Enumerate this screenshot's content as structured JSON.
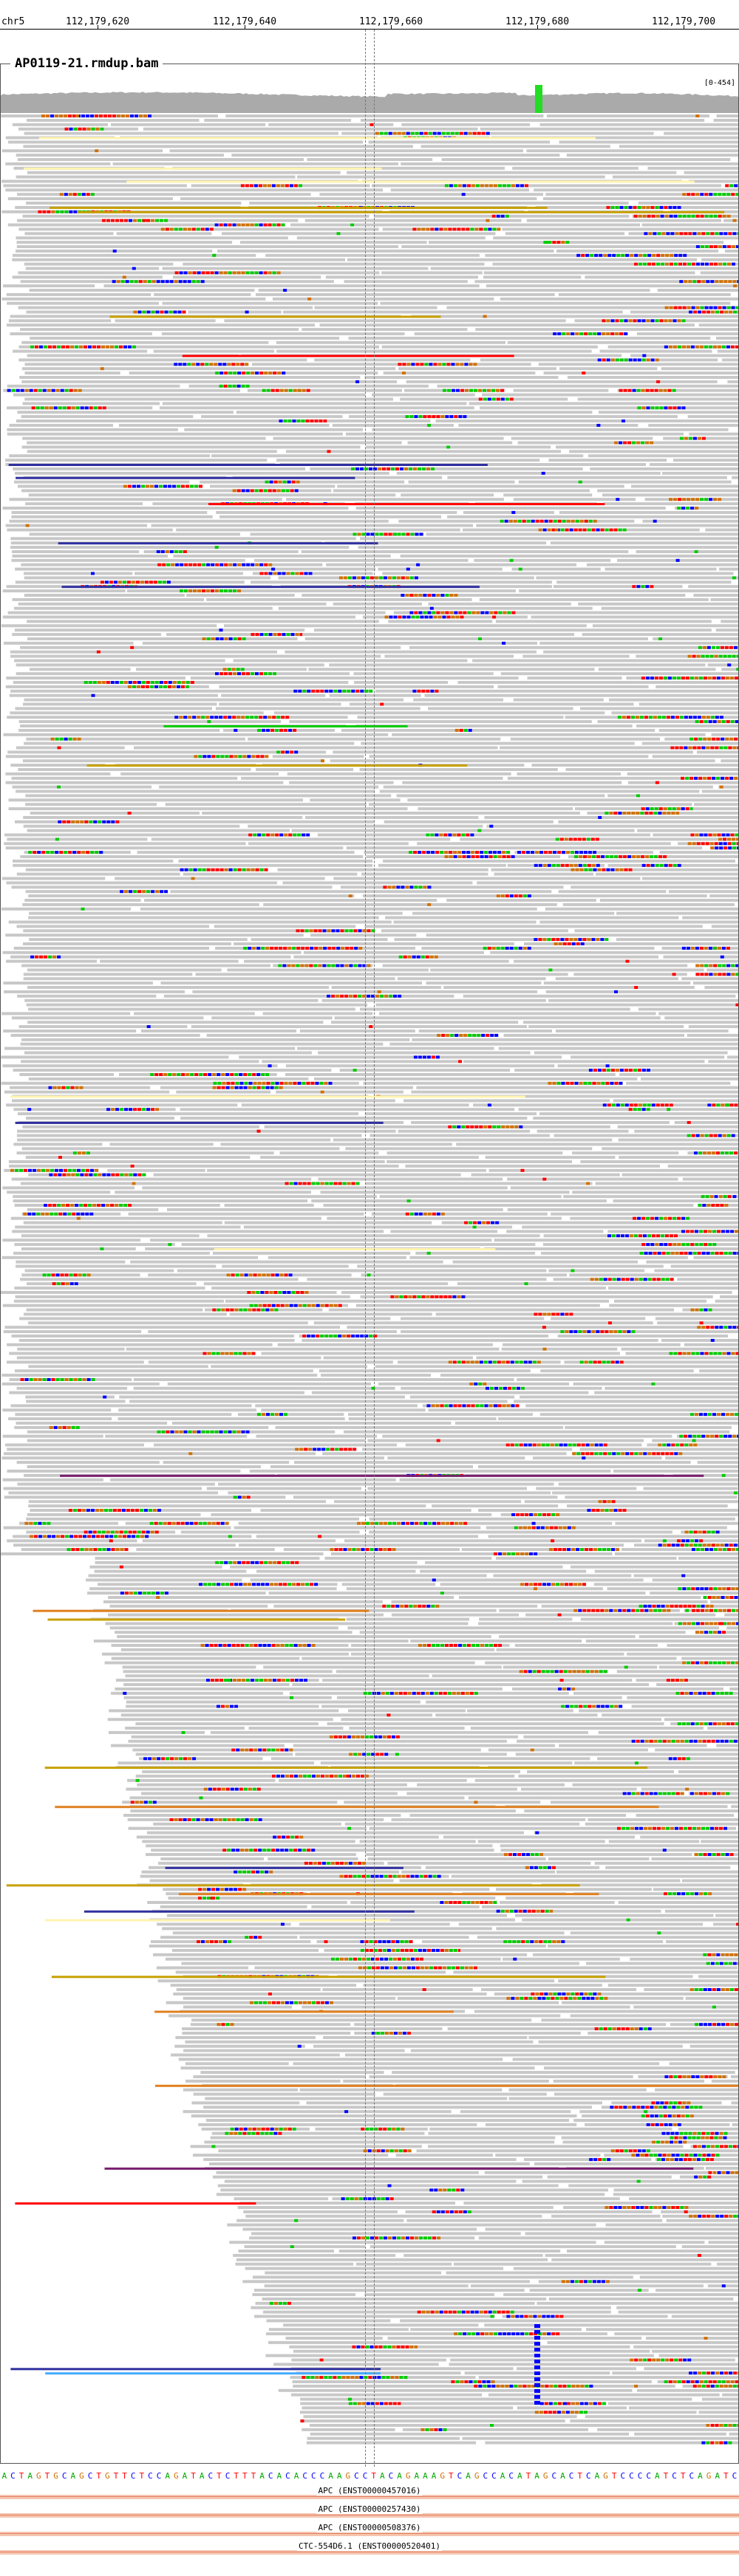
{
  "ruler": {
    "chromosome": "chr5",
    "ticks": [
      "112,179,620",
      "112,179,640",
      "112,179,660",
      "112,179,680",
      "112,179,700"
    ]
  },
  "track": {
    "title": "AP0119-21.rmdup.bam",
    "coverage_range": "[0-454]"
  },
  "colors": {
    "read_default": "#c8c8c8",
    "base_A": "#00cc00",
    "base_C": "#0000ff",
    "base_G": "#d17105",
    "base_T": "#ff0000",
    "coverage": "#aaaaaa",
    "coverage_snp": "#22dd22",
    "gene_body": "#f6c4b0",
    "soft_yellow": "#fff3b0",
    "insert_purple": "#7a1f6f",
    "insert_blue": "#3030a0",
    "insert_cyan": "#44aaff",
    "insert_orange": "#e08020",
    "insert_olive": "#c8a000"
  },
  "sequence": "ACTAGTGCAGCTGTTCTCCAGATACTCTTTACACACCCAAGCCTACAGAAAGTCAGCCACATAGCACTCAGTCCCCATCTCAGATC",
  "genes": [
    {
      "label": "APC (ENST00000457016)"
    },
    {
      "label": "APC (ENST00000257430)"
    },
    {
      "label": "APC (ENST00000508376)"
    },
    {
      "label": "CTC-554D6.1 (ENST00000520401)"
    }
  ]
}
